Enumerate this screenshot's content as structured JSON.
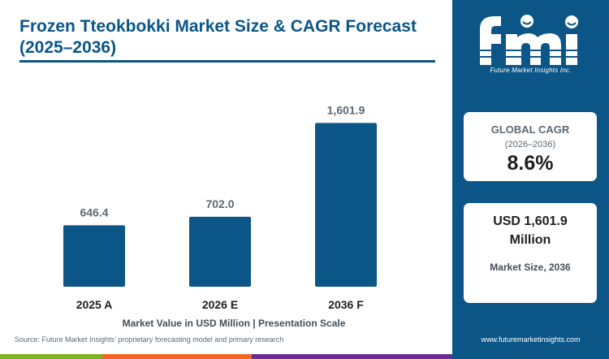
{
  "header": {
    "title": "Frozen Tteokbokki Market Size & CAGR Forecast (2025–2036)"
  },
  "chart_data": {
    "type": "bar",
    "title": "Frozen Tteokbokki Market Size & CAGR Forecast (2025–2036)",
    "categories": [
      "2025 A",
      "2026 E",
      "2036 F"
    ],
    "values": [
      646.4,
      702.0,
      1601.9
    ],
    "value_labels": [
      "646.4",
      "702.0",
      "1,601.9"
    ],
    "xlabel": "Market Value in USD Million | Presentation Scale",
    "ylabel": "",
    "presentation_scale": [
      0.36,
      0.41,
      0.96
    ],
    "grid": false,
    "legend": "none",
    "bar_color": "#0b5687"
  },
  "footer": {
    "source": "Source: Future Market Insights’ proprietary forecasting model and primary research",
    "website": "www.futuremarketinsights.com"
  },
  "sidebar": {
    "logo_text": "fmi",
    "logo_tagline": "Future Market Insights Inc.",
    "cagr_card": {
      "title": "GLOBAL CAGR",
      "period": "(2026–2036)",
      "value": "8.6%"
    },
    "size_card": {
      "value_line1": "USD 1,601.9",
      "value_line2": "Million",
      "label": "Market Size, 2036"
    }
  },
  "colors": {
    "brand_blue": "#0b5687",
    "strip_green": "#7ab51d",
    "strip_orange": "#f26522",
    "strip_purple": "#6b2c91"
  }
}
